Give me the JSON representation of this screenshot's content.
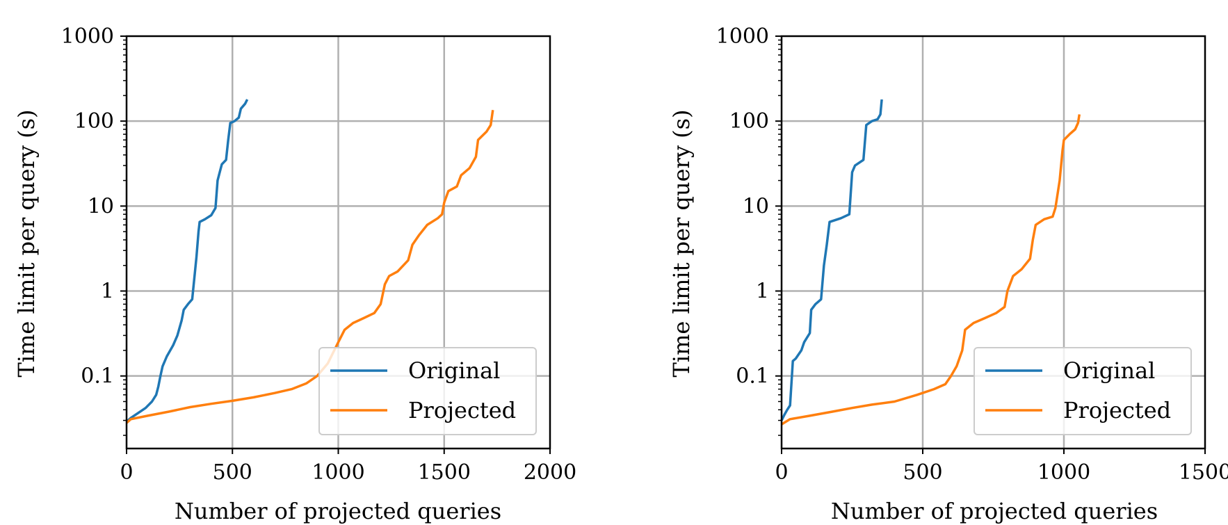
{
  "figure": {
    "charts": [
      {
        "xlabel": "Number of projected queries",
        "ylabel": "Time limit per query (s)"
      },
      {
        "xlabel": "Number of projected queries",
        "ylabel": "Time limit per query (s)"
      }
    ]
  },
  "chart_data": [
    {
      "type": "line",
      "title": "",
      "xlabel": "Number of projected queries",
      "ylabel": "Time limit per query (s)",
      "yscale": "log",
      "xlim": [
        0,
        2000
      ],
      "ylim": [
        0.014,
        1000
      ],
      "xticks": [
        0,
        500,
        1000,
        1500,
        2000
      ],
      "yticks": [
        0.1,
        1,
        10,
        100,
        1000
      ],
      "xtick_labels": [
        "0",
        "500",
        "1000",
        "1500",
        "2000"
      ],
      "ytick_labels": [
        "0.1",
        "1",
        "10",
        "100",
        "1000"
      ],
      "grid": true,
      "legend": "lower-right",
      "series": [
        {
          "name": "Original",
          "color": "#1f77b4",
          "points": [
            [
              0,
              0.029
            ],
            [
              20,
              0.032
            ],
            [
              50,
              0.036
            ],
            [
              90,
              0.042
            ],
            [
              120,
              0.05
            ],
            [
              140,
              0.06
            ],
            [
              150,
              0.075
            ],
            [
              160,
              0.1
            ],
            [
              170,
              0.13
            ],
            [
              190,
              0.17
            ],
            [
              220,
              0.23
            ],
            [
              240,
              0.3
            ],
            [
              260,
              0.45
            ],
            [
              270,
              0.6
            ],
            [
              290,
              0.7
            ],
            [
              310,
              0.8
            ],
            [
              320,
              1.4
            ],
            [
              330,
              2.5
            ],
            [
              340,
              5
            ],
            [
              345,
              6.5
            ],
            [
              370,
              7
            ],
            [
              400,
              7.8
            ],
            [
              420,
              9.5
            ],
            [
              430,
              20
            ],
            [
              440,
              25
            ],
            [
              450,
              31
            ],
            [
              470,
              35
            ],
            [
              480,
              60
            ],
            [
              490,
              95
            ],
            [
              510,
              100
            ],
            [
              530,
              110
            ],
            [
              540,
              140
            ],
            [
              560,
              160
            ],
            [
              570,
              180
            ]
          ]
        },
        {
          "name": "Projected",
          "color": "#ff7f0e",
          "points": [
            [
              0,
              0.028
            ],
            [
              20,
              0.031
            ],
            [
              100,
              0.034
            ],
            [
              200,
              0.038
            ],
            [
              300,
              0.043
            ],
            [
              400,
              0.047
            ],
            [
              500,
              0.051
            ],
            [
              600,
              0.056
            ],
            [
              700,
              0.063
            ],
            [
              780,
              0.07
            ],
            [
              850,
              0.082
            ],
            [
              900,
              0.1
            ],
            [
              950,
              0.14
            ],
            [
              1000,
              0.25
            ],
            [
              1030,
              0.35
            ],
            [
              1070,
              0.42
            ],
            [
              1120,
              0.48
            ],
            [
              1170,
              0.55
            ],
            [
              1200,
              0.7
            ],
            [
              1220,
              1.2
            ],
            [
              1240,
              1.5
            ],
            [
              1280,
              1.7
            ],
            [
              1330,
              2.3
            ],
            [
              1350,
              3.5
            ],
            [
              1380,
              4.5
            ],
            [
              1420,
              6
            ],
            [
              1470,
              7.2
            ],
            [
              1490,
              8
            ],
            [
              1500,
              11
            ],
            [
              1520,
              15
            ],
            [
              1560,
              17
            ],
            [
              1580,
              23
            ],
            [
              1620,
              28
            ],
            [
              1650,
              38
            ],
            [
              1660,
              60
            ],
            [
              1700,
              75
            ],
            [
              1720,
              90
            ],
            [
              1730,
              135
            ]
          ]
        }
      ]
    },
    {
      "type": "line",
      "title": "",
      "xlabel": "Number of projected queries",
      "ylabel": "Time limit per query (s)",
      "yscale": "log",
      "xlim": [
        0,
        1500
      ],
      "ylim": [
        0.014,
        1000
      ],
      "xticks": [
        0,
        500,
        1000,
        1500
      ],
      "yticks": [
        0.1,
        1,
        10,
        100,
        1000
      ],
      "xtick_labels": [
        "0",
        "500",
        "1000",
        "1500"
      ],
      "ytick_labels": [
        "0.1",
        "1",
        "10",
        "100",
        "1000"
      ],
      "grid": true,
      "legend": "lower-right",
      "series": [
        {
          "name": "Original",
          "color": "#1f77b4",
          "points": [
            [
              0,
              0.03
            ],
            [
              10,
              0.035
            ],
            [
              20,
              0.04
            ],
            [
              30,
              0.045
            ],
            [
              40,
              0.15
            ],
            [
              50,
              0.16
            ],
            [
              70,
              0.2
            ],
            [
              80,
              0.25
            ],
            [
              100,
              0.32
            ],
            [
              105,
              0.6
            ],
            [
              120,
              0.7
            ],
            [
              140,
              0.8
            ],
            [
              150,
              2
            ],
            [
              160,
              3.5
            ],
            [
              170,
              6.5
            ],
            [
              210,
              7.2
            ],
            [
              240,
              8
            ],
            [
              250,
              25
            ],
            [
              260,
              30
            ],
            [
              290,
              35
            ],
            [
              300,
              90
            ],
            [
              320,
              100
            ],
            [
              340,
              105
            ],
            [
              350,
              120
            ],
            [
              355,
              180
            ]
          ]
        },
        {
          "name": "Projected",
          "color": "#ff7f0e",
          "points": [
            [
              0,
              0.027
            ],
            [
              30,
              0.031
            ],
            [
              100,
              0.034
            ],
            [
              180,
              0.038
            ],
            [
              250,
              0.042
            ],
            [
              320,
              0.046
            ],
            [
              400,
              0.05
            ],
            [
              480,
              0.06
            ],
            [
              540,
              0.07
            ],
            [
              580,
              0.08
            ],
            [
              600,
              0.1
            ],
            [
              620,
              0.13
            ],
            [
              640,
              0.2
            ],
            [
              650,
              0.35
            ],
            [
              680,
              0.42
            ],
            [
              720,
              0.48
            ],
            [
              760,
              0.55
            ],
            [
              790,
              0.65
            ],
            [
              800,
              1
            ],
            [
              820,
              1.5
            ],
            [
              850,
              1.8
            ],
            [
              880,
              2.4
            ],
            [
              890,
              4
            ],
            [
              900,
              6
            ],
            [
              930,
              7
            ],
            [
              960,
              7.5
            ],
            [
              970,
              9.5
            ],
            [
              985,
              20
            ],
            [
              995,
              45
            ],
            [
              1000,
              60
            ],
            [
              1020,
              70
            ],
            [
              1040,
              80
            ],
            [
              1050,
              95
            ],
            [
              1055,
              120
            ]
          ]
        }
      ]
    }
  ]
}
